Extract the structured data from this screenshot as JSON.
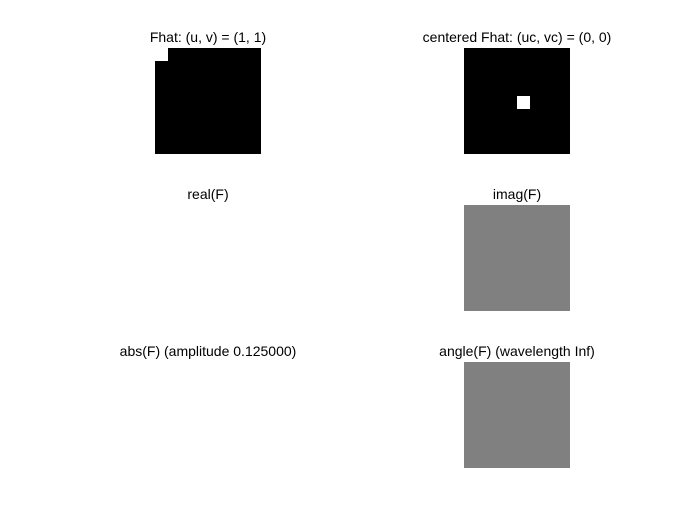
{
  "titles": {
    "fhat": "Fhat: (u, v) = (1, 1)",
    "centered": "centered Fhat: (uc, vc) = (0, 0)",
    "real": "real(F)",
    "imag": "imag(F)",
    "abs": "abs(F) (amplitude 0.125000)",
    "angle": "angle(F) (wavelength Inf)"
  },
  "colors": {
    "black": "#000000",
    "gray": "#808080",
    "white": "#ffffff"
  }
}
